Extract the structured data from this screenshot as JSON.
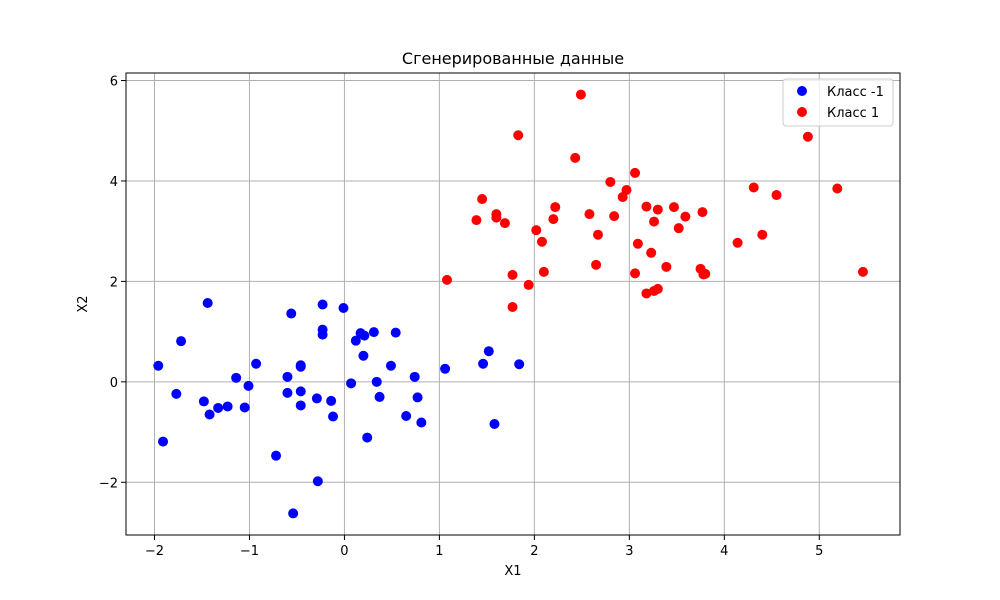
{
  "chart_data": {
    "type": "scatter",
    "title": "Сгенерированные данные",
    "xlabel": "X1",
    "ylabel": "X2",
    "xlim": [
      -2.3,
      5.85
    ],
    "ylim": [
      -3.05,
      6.15
    ],
    "xticks": [
      -2,
      -1,
      0,
      1,
      2,
      3,
      4,
      5
    ],
    "yticks": [
      -2,
      0,
      2,
      4,
      6
    ],
    "grid": true,
    "legend_position": "top-right",
    "series": [
      {
        "name": "Класс -1",
        "color": "#0000ff",
        "points": [
          [
            -1.96,
            0.32
          ],
          [
            -1.91,
            -1.19
          ],
          [
            -1.77,
            -0.24
          ],
          [
            -1.72,
            0.81
          ],
          [
            -1.48,
            -0.39
          ],
          [
            -1.44,
            1.57
          ],
          [
            -1.42,
            -0.65
          ],
          [
            -1.33,
            -0.52
          ],
          [
            -1.23,
            -0.49
          ],
          [
            -1.14,
            0.08
          ],
          [
            -1.05,
            -0.51
          ],
          [
            -1.01,
            -0.08
          ],
          [
            -0.93,
            0.36
          ],
          [
            -0.72,
            -1.47
          ],
          [
            -0.6,
            0.1
          ],
          [
            -0.6,
            -0.22
          ],
          [
            -0.56,
            1.36
          ],
          [
            -0.54,
            -2.62
          ],
          [
            -0.46,
            0.33
          ],
          [
            -0.46,
            0.3
          ],
          [
            -0.46,
            -0.19
          ],
          [
            -0.46,
            -0.47
          ],
          [
            -0.29,
            -0.33
          ],
          [
            -0.28,
            -1.98
          ],
          [
            -0.23,
            1.54
          ],
          [
            -0.23,
            1.04
          ],
          [
            -0.23,
            0.94
          ],
          [
            -0.14,
            -0.38
          ],
          [
            -0.12,
            -0.69
          ],
          [
            -0.01,
            1.47
          ],
          [
            0.07,
            -0.03
          ],
          [
            0.12,
            0.82
          ],
          [
            0.17,
            0.97
          ],
          [
            0.2,
            0.52
          ],
          [
            0.21,
            0.92
          ],
          [
            0.24,
            -1.11
          ],
          [
            0.31,
            0.99
          ],
          [
            0.34,
            0.0
          ],
          [
            0.37,
            -0.3
          ],
          [
            0.49,
            0.32
          ],
          [
            0.54,
            0.98
          ],
          [
            0.65,
            -0.68
          ],
          [
            0.74,
            0.1
          ],
          [
            0.77,
            -0.31
          ],
          [
            0.81,
            -0.81
          ],
          [
            1.06,
            0.26
          ],
          [
            1.46,
            0.36
          ],
          [
            1.52,
            0.61
          ],
          [
            1.58,
            -0.84
          ],
          [
            1.84,
            0.35
          ]
        ]
      },
      {
        "name": "Класс 1",
        "color": "#ff0000",
        "points": [
          [
            1.08,
            2.03
          ],
          [
            1.39,
            3.22
          ],
          [
            1.45,
            3.64
          ],
          [
            1.6,
            3.34
          ],
          [
            1.6,
            3.27
          ],
          [
            1.69,
            3.16
          ],
          [
            1.77,
            2.13
          ],
          [
            1.77,
            1.49
          ],
          [
            1.83,
            4.91
          ],
          [
            1.94,
            1.93
          ],
          [
            2.02,
            3.02
          ],
          [
            2.08,
            2.79
          ],
          [
            2.1,
            2.19
          ],
          [
            2.2,
            3.24
          ],
          [
            2.22,
            3.48
          ],
          [
            2.43,
            4.46
          ],
          [
            2.49,
            5.72
          ],
          [
            2.58,
            3.34
          ],
          [
            2.65,
            2.33
          ],
          [
            2.67,
            2.93
          ],
          [
            2.8,
            3.98
          ],
          [
            2.84,
            3.3
          ],
          [
            2.93,
            3.68
          ],
          [
            2.97,
            3.82
          ],
          [
            3.06,
            4.16
          ],
          [
            3.06,
            2.16
          ],
          [
            3.09,
            2.75
          ],
          [
            3.18,
            3.49
          ],
          [
            3.18,
            1.76
          ],
          [
            3.23,
            2.57
          ],
          [
            3.26,
            3.19
          ],
          [
            3.26,
            1.81
          ],
          [
            3.3,
            1.85
          ],
          [
            3.3,
            3.43
          ],
          [
            3.39,
            2.29
          ],
          [
            3.47,
            3.48
          ],
          [
            3.52,
            3.06
          ],
          [
            3.59,
            3.29
          ],
          [
            3.75,
            2.25
          ],
          [
            3.77,
            3.38
          ],
          [
            3.78,
            2.14
          ],
          [
            3.8,
            2.15
          ],
          [
            4.14,
            2.77
          ],
          [
            4.31,
            3.87
          ],
          [
            4.4,
            2.93
          ],
          [
            4.55,
            3.72
          ],
          [
            4.88,
            4.88
          ],
          [
            5.19,
            3.85
          ],
          [
            5.46,
            2.19
          ]
        ]
      }
    ]
  }
}
